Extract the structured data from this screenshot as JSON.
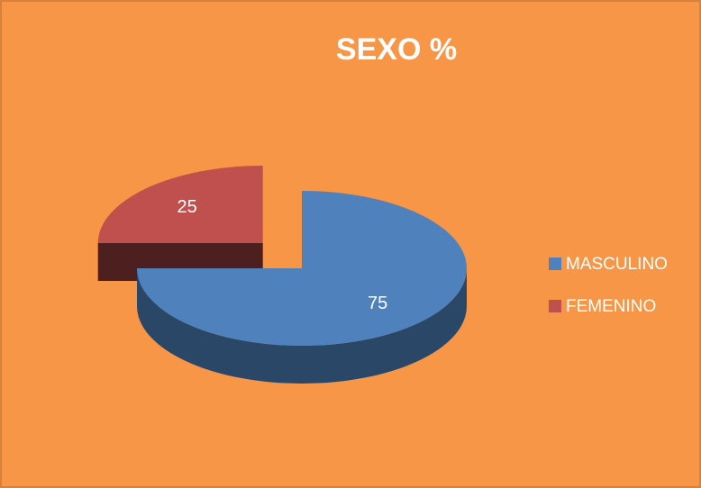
{
  "chart_data": {
    "type": "pie3d",
    "title": "SEXO %",
    "categories": [
      "MASCULINO",
      "FEMENINO"
    ],
    "values": [
      75,
      25
    ],
    "colors": [
      "#4f81bd",
      "#c0504d"
    ],
    "legend": "right"
  }
}
